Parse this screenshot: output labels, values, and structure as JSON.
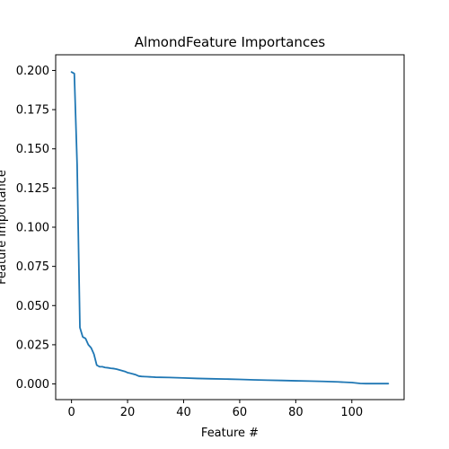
{
  "chart_data": {
    "type": "line",
    "title": "AlmondFeature Importances",
    "xlabel": "Feature #",
    "ylabel": "Feature Importance",
    "xlim": [
      -5.65,
      118.65
    ],
    "ylim": [
      -0.01,
      0.21
    ],
    "xticks": [
      0,
      20,
      40,
      60,
      80,
      100
    ],
    "xtick_labels": [
      "0",
      "20",
      "40",
      "60",
      "80",
      "100"
    ],
    "yticks": [
      0.0,
      0.025,
      0.05,
      0.075,
      0.1,
      0.125,
      0.15,
      0.175,
      0.2
    ],
    "ytick_labels": [
      "0.000",
      "0.025",
      "0.050",
      "0.075",
      "0.100",
      "0.125",
      "0.150",
      "0.175",
      "0.200"
    ],
    "grid": false,
    "series": [
      {
        "color": "#1f77b4",
        "x": [
          0,
          1,
          2,
          3,
          4,
          5,
          6,
          7,
          8,
          9,
          10,
          11,
          12,
          13,
          14,
          15,
          16,
          17,
          18,
          19,
          20,
          21,
          22,
          23,
          24,
          25,
          26,
          27,
          28,
          29,
          30,
          35,
          40,
          45,
          50,
          55,
          60,
          65,
          70,
          75,
          80,
          85,
          90,
          95,
          100,
          103,
          105,
          110,
          113
        ],
        "values": [
          0.199,
          0.198,
          0.14,
          0.036,
          0.03,
          0.029,
          0.025,
          0.023,
          0.019,
          0.012,
          0.011,
          0.011,
          0.0105,
          0.0103,
          0.01,
          0.0098,
          0.0095,
          0.009,
          0.0085,
          0.008,
          0.0072,
          0.0068,
          0.0063,
          0.0058,
          0.005,
          0.0048,
          0.0047,
          0.0046,
          0.0045,
          0.0044,
          0.0043,
          0.0041,
          0.0038,
          0.0035,
          0.0033,
          0.0031,
          0.0029,
          0.0026,
          0.0024,
          0.0022,
          0.002,
          0.0018,
          0.0016,
          0.0013,
          0.0009,
          0.0003,
          0.0002,
          0.0002,
          0.0002
        ]
      }
    ]
  }
}
